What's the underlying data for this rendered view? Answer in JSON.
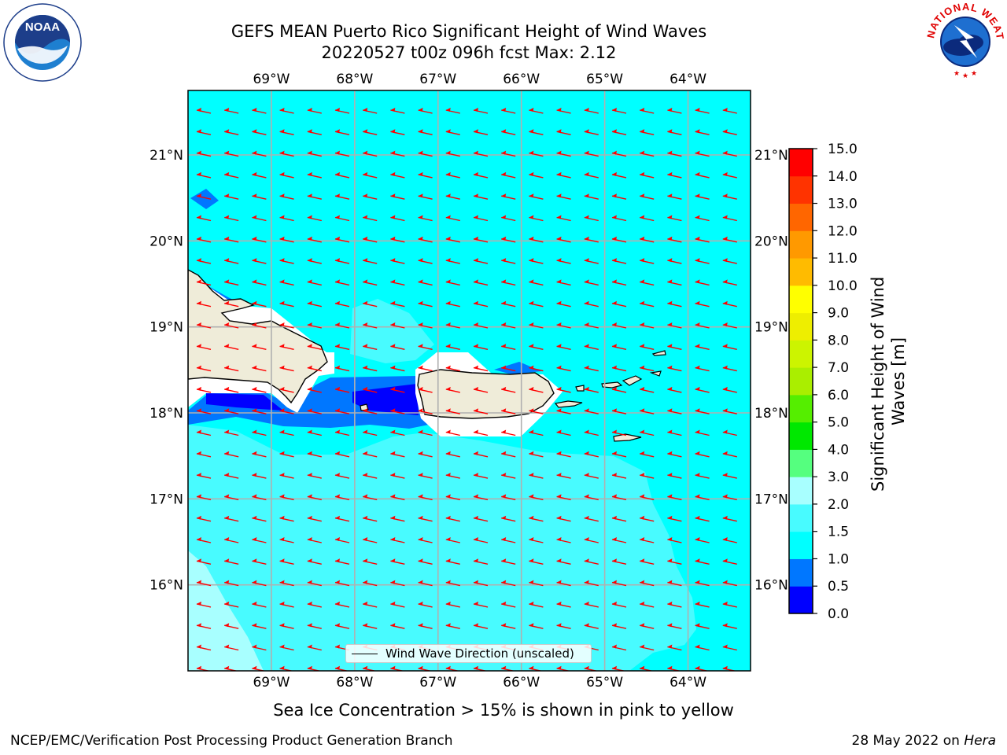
{
  "title": {
    "line1": "GEFS MEAN Puerto Rico Significant Height of Wind Waves",
    "line2": "20220527 t00z 096h fcst   Max: 2.12"
  },
  "map": {
    "lon_range": [
      -70.0,
      -63.25
    ],
    "lat_range": [
      15.0,
      21.75
    ],
    "lon_ticks": [
      {
        "value": -69,
        "label": "69°W"
      },
      {
        "value": -68,
        "label": "68°W"
      },
      {
        "value": -67,
        "label": "67°W"
      },
      {
        "value": -66,
        "label": "66°W"
      },
      {
        "value": -65,
        "label": "65°W"
      },
      {
        "value": -64,
        "label": "64°W"
      }
    ],
    "lat_ticks": [
      {
        "value": 21,
        "label": "21°N"
      },
      {
        "value": 20,
        "label": "20°N"
      },
      {
        "value": 19,
        "label": "19°N"
      },
      {
        "value": 18,
        "label": "18°N"
      },
      {
        "value": 17,
        "label": "17°N"
      },
      {
        "value": 16,
        "label": "16°N"
      }
    ],
    "gridlines": true,
    "ocean_color": "#00ffff",
    "land_color": "#efecd9",
    "arrow_color": "#ff0000",
    "arrow_direction": "toward west (easterly wind waves)"
  },
  "legend": {
    "label": "Wind Wave Direction (unscaled)",
    "placement": "bottom-center"
  },
  "colorbar": {
    "title_line1": "Significant Height of Wind",
    "title_line2": "Waves [m]",
    "levels": [
      {
        "value": 0.0,
        "label": "0.0",
        "color": "#0000ff"
      },
      {
        "value": 0.5,
        "label": "0.5",
        "color": "#0077ff"
      },
      {
        "value": 1.0,
        "label": "1.0",
        "color": "#00ffff"
      },
      {
        "value": 1.5,
        "label": "1.5",
        "color": "#48fbff"
      },
      {
        "value": 2.0,
        "label": "2.0",
        "color": "#a8ffff"
      },
      {
        "value": 3.0,
        "label": "3.0",
        "color": "#55ff7f"
      },
      {
        "value": 4.0,
        "label": "4.0",
        "color": "#00e800"
      },
      {
        "value": 5.0,
        "label": "5.0",
        "color": "#55ee00"
      },
      {
        "value": 6.0,
        "label": "6.0",
        "color": "#aaee00"
      },
      {
        "value": 7.0,
        "label": "7.0",
        "color": "#ccf400"
      },
      {
        "value": 8.0,
        "label": "8.0",
        "color": "#eeee00"
      },
      {
        "value": 9.0,
        "label": "9.0",
        "color": "#ffff00"
      },
      {
        "value": 10.0,
        "label": "10.0",
        "color": "#ffbb00"
      },
      {
        "value": 11.0,
        "label": "11.0",
        "color": "#ff9900"
      },
      {
        "value": 12.0,
        "label": "12.0",
        "color": "#ff6600"
      },
      {
        "value": 13.0,
        "label": "13.0",
        "color": "#ff3300"
      },
      {
        "value": 14.0,
        "label": "14.0",
        "color": "#ff0000"
      },
      {
        "value": 15.0,
        "label": "15.0",
        "color": ""
      }
    ]
  },
  "logos": {
    "noaa_text": "NOAA",
    "nws_text": "NATIONAL WEATHER SERVICE"
  },
  "footer": {
    "sea_ice_note": "Sea Ice Concentration > 15% is shown in pink to yellow",
    "credit": "NCEP/EMC/Verification Post Processing Product Generation Branch",
    "date_prefix": "28 May 2022 on",
    "machine": "Hera"
  }
}
